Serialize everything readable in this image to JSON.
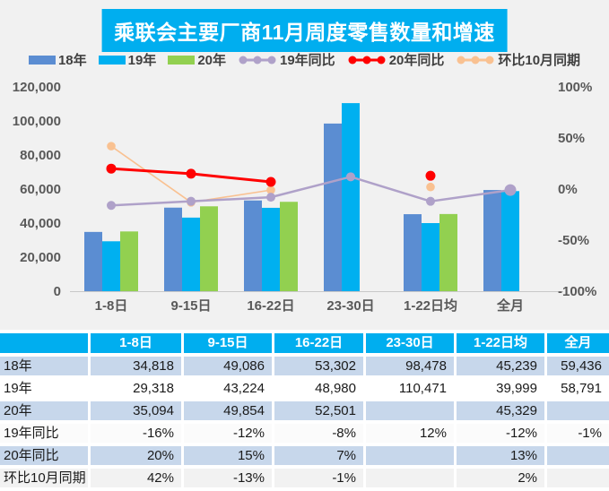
{
  "title": "乘联会主要厂商11月周度零售数量和增速",
  "colors": {
    "chart_background": "#F1F1F1",
    "title_background": "#00AEEF",
    "bar_18": "#5B8DD2",
    "bar_19": "#00B0F0",
    "bar_20": "#92D050",
    "line_19_yoy": "#AFA1C9",
    "line_20_yoy": "#FF0000",
    "line_mom_oct": "#F9C191",
    "table_header_background": "#00AEEF",
    "table_band_row": "#C7D7EB",
    "axis_text": "#595959"
  },
  "legend": [
    {
      "type": "bar",
      "color": "#5B8DD2",
      "label": "18年"
    },
    {
      "type": "bar",
      "color": "#00B0F0",
      "label": "19年"
    },
    {
      "type": "bar",
      "color": "#92D050",
      "label": "20年"
    },
    {
      "type": "line",
      "color": "#AFA1C9",
      "label": "19年同比"
    },
    {
      "type": "line",
      "color": "#FF0000",
      "label": "20年同比"
    },
    {
      "type": "line",
      "color": "#F9C191",
      "label": "环比10月同期"
    }
  ],
  "chart_data": {
    "type": "bar+line combo",
    "title": "乘联会主要厂商11月周度零售数量和增速",
    "categories": [
      "1-8日",
      "9-15日",
      "16-22日",
      "23-30日",
      "1-22日均",
      "全月"
    ],
    "bar_series": [
      {
        "name": "18年",
        "color": "#5B8DD2",
        "values": [
          34818,
          49086,
          53302,
          98478,
          45239,
          59436
        ]
      },
      {
        "name": "19年",
        "color": "#00B0F0",
        "values": [
          29318,
          43224,
          48980,
          110471,
          39999,
          58791
        ]
      },
      {
        "name": "20年",
        "color": "#92D050",
        "values": [
          35094,
          49854,
          52501,
          null,
          45329,
          null
        ]
      }
    ],
    "line_series": [
      {
        "name": "19年同比",
        "color": "#AFA1C9",
        "values_pct": [
          -16,
          -12,
          -8,
          12,
          -12,
          -1
        ]
      },
      {
        "name": "20年同比",
        "color": "#FF0000",
        "values_pct": [
          20,
          15,
          7,
          null,
          13,
          null
        ]
      },
      {
        "name": "环比10月同期",
        "color": "#F9C191",
        "values_pct": [
          42,
          -13,
          -1,
          null,
          2,
          null
        ]
      }
    ],
    "left_axis": {
      "min": 0,
      "max": 120000,
      "ticks": [
        "120,000",
        "100,000",
        "80,000",
        "60,000",
        "40,000",
        "20,000",
        "0"
      ]
    },
    "right_axis": {
      "min": -100,
      "max": 100,
      "ticks": [
        "100%",
        "50%",
        "0%",
        "-50%",
        "-100%"
      ]
    },
    "grid": "off",
    "legend_position": "top"
  },
  "table": {
    "header": [
      "",
      "1-8日",
      "9-15日",
      "16-22日",
      "23-30日",
      "1-22日均",
      "全月"
    ],
    "rows": [
      {
        "label": "18年",
        "cells": [
          "34,818",
          "49,086",
          "53,302",
          "98,478",
          "45,239",
          "59,436"
        ]
      },
      {
        "label": "19年",
        "cells": [
          "29,318",
          "43,224",
          "48,980",
          "110,471",
          "39,999",
          "58,791"
        ]
      },
      {
        "label": "20年",
        "cells": [
          "35,094",
          "49,854",
          "52,501",
          "",
          "45,329",
          ""
        ]
      },
      {
        "label": "19年同比",
        "cells": [
          "-16%",
          "-12%",
          "-8%",
          "12%",
          "-12%",
          "-1%"
        ]
      },
      {
        "label": "20年同比",
        "cells": [
          "20%",
          "15%",
          "7%",
          "",
          "13%",
          ""
        ]
      },
      {
        "label": "环比10月同期",
        "cells": [
          "42%",
          "-13%",
          "-1%",
          "",
          "2%",
          ""
        ]
      }
    ]
  }
}
